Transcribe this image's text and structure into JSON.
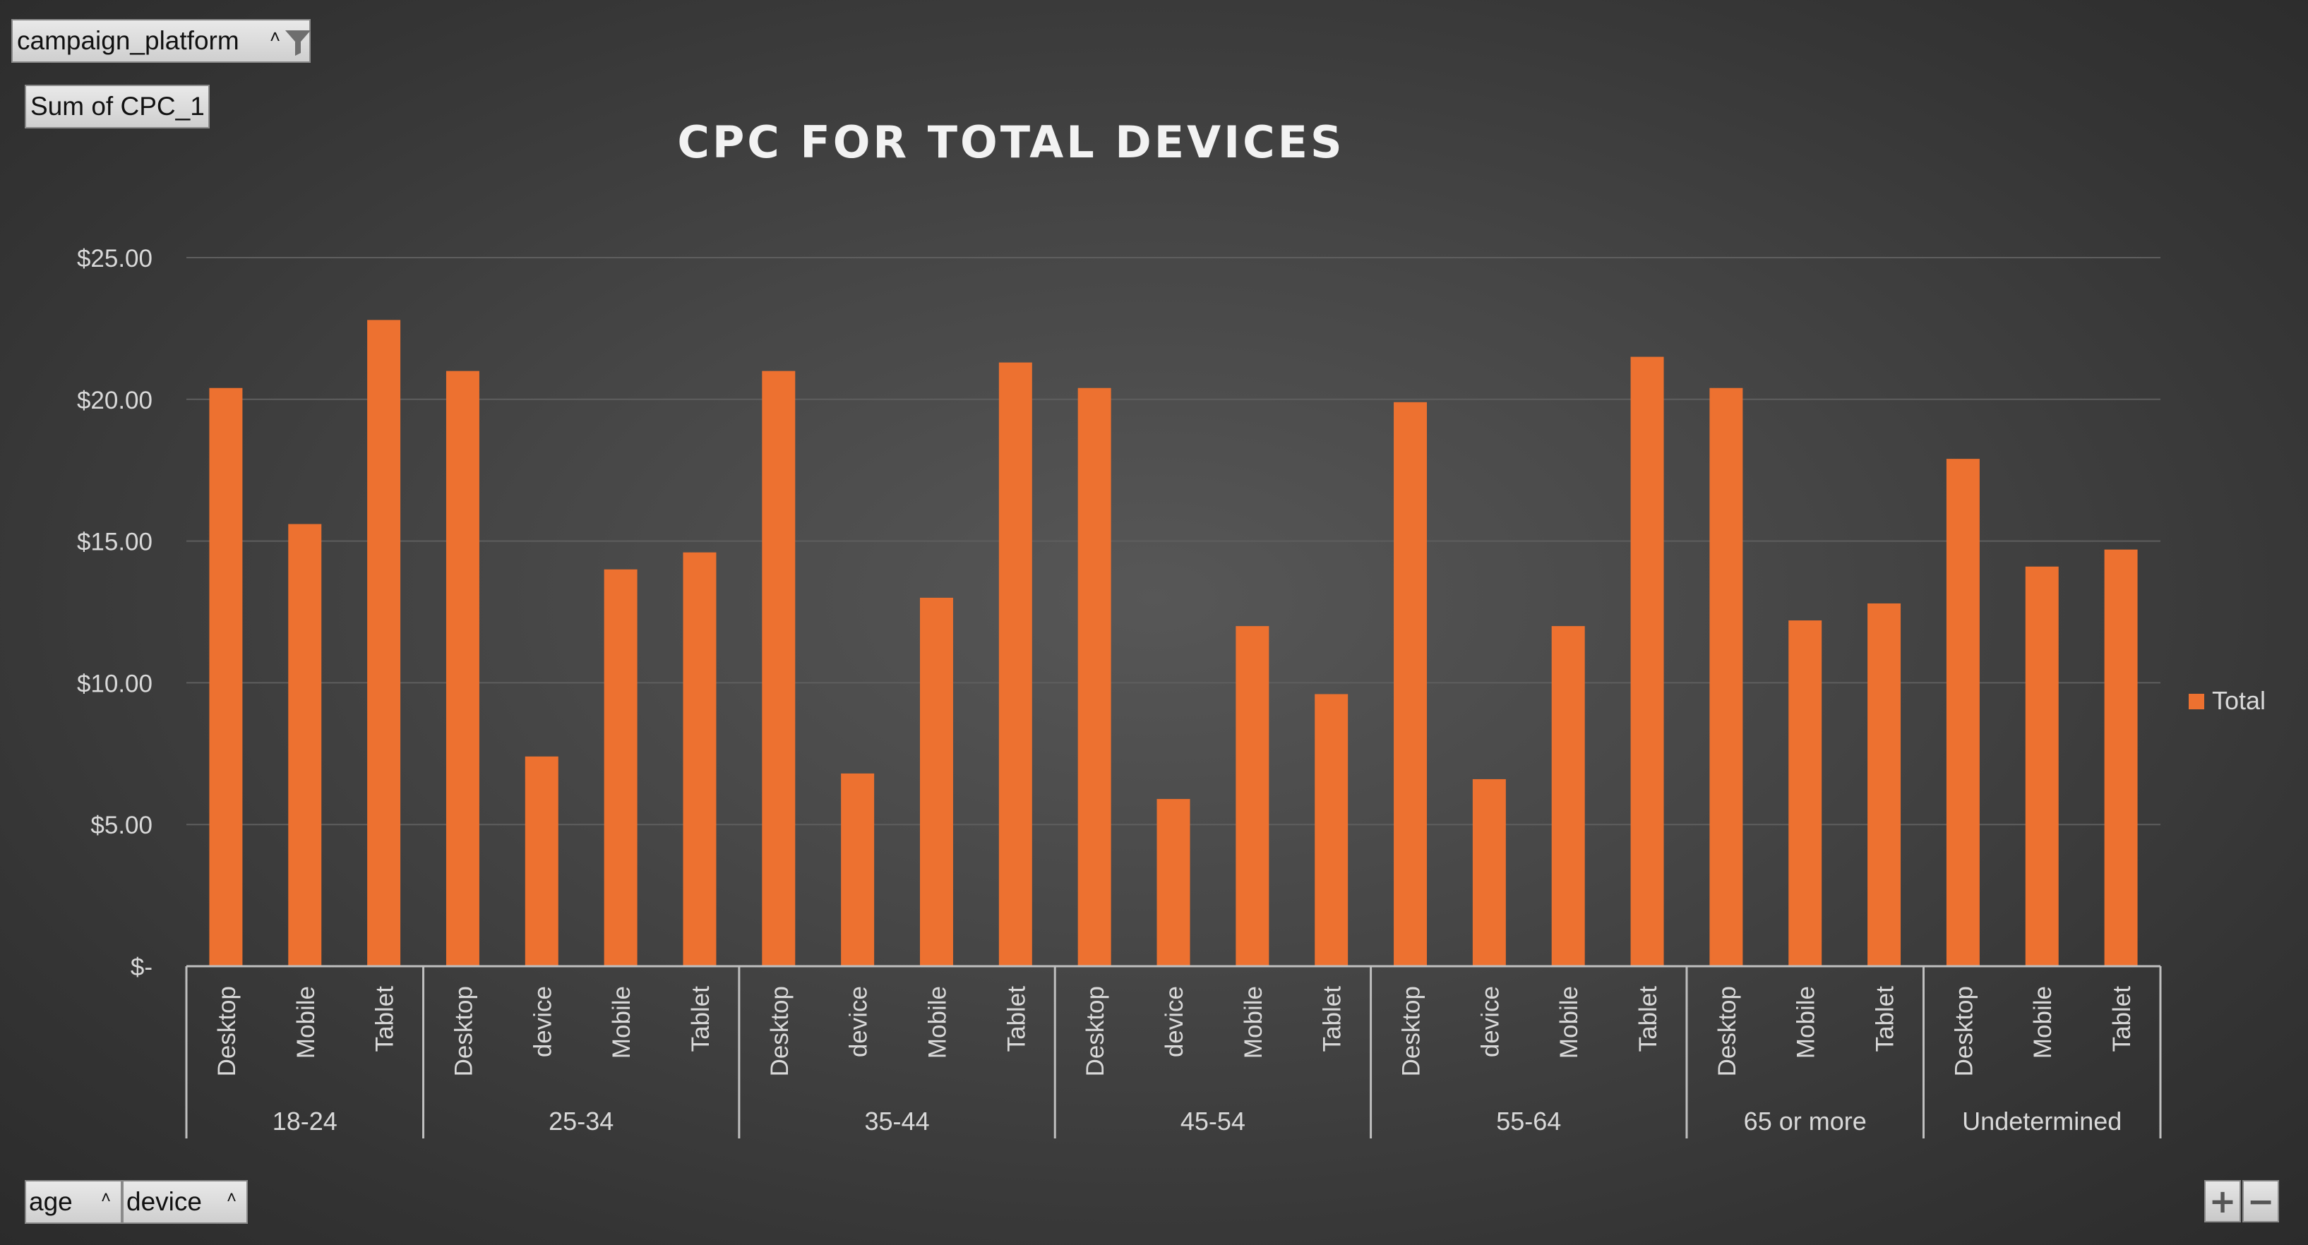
{
  "pivot_fields": {
    "filter": "campaign_platform",
    "value": "Sum of CPC_1",
    "axis": [
      "age",
      "device"
    ],
    "expand_label": "+",
    "collapse_label": "−"
  },
  "colors": {
    "bar": "#ED7130",
    "text": "#D9D9D9",
    "title": "#F2F2F2",
    "axis_line": "#BFBFBF",
    "grid": "#5E5E5E"
  },
  "chart_data": {
    "type": "bar",
    "title": "CPC FOR TOTAL DEVICES",
    "ylim": [
      0,
      25
    ],
    "yticks": [
      0,
      5,
      10,
      15,
      20,
      25
    ],
    "ytick_labels": [
      "$-",
      "$5.00",
      "$10.00",
      "$15.00",
      "$20.00",
      "$25.00"
    ],
    "grid": true,
    "legend_position": "right",
    "series": [
      {
        "name": "Total"
      }
    ],
    "groups": [
      {
        "label": "18-24",
        "categories": [
          "Desktop",
          "Mobile",
          "Tablet"
        ],
        "values": [
          20.4,
          15.6,
          22.8
        ]
      },
      {
        "label": "25-34",
        "categories": [
          "Desktop",
          "device",
          "Mobile",
          "Tablet"
        ],
        "values": [
          21.0,
          7.4,
          14.0,
          14.6
        ]
      },
      {
        "label": "35-44",
        "categories": [
          "Desktop",
          "device",
          "Mobile",
          "Tablet"
        ],
        "values": [
          21.0,
          6.8,
          13.0,
          21.3
        ]
      },
      {
        "label": "45-54",
        "categories": [
          "Desktop",
          "device",
          "Mobile",
          "Tablet"
        ],
        "values": [
          20.4,
          5.9,
          12.0,
          9.6
        ]
      },
      {
        "label": "55-64",
        "categories": [
          "Desktop",
          "device",
          "Mobile",
          "Tablet"
        ],
        "values": [
          19.9,
          6.6,
          12.0,
          21.5
        ]
      },
      {
        "label": "65 or more",
        "categories": [
          "Desktop",
          "Mobile",
          "Tablet"
        ],
        "values": [
          20.4,
          12.2,
          12.8
        ]
      },
      {
        "label": "Undetermined",
        "categories": [
          "Desktop",
          "Mobile",
          "Tablet"
        ],
        "values": [
          17.9,
          14.1,
          14.7
        ]
      }
    ]
  }
}
